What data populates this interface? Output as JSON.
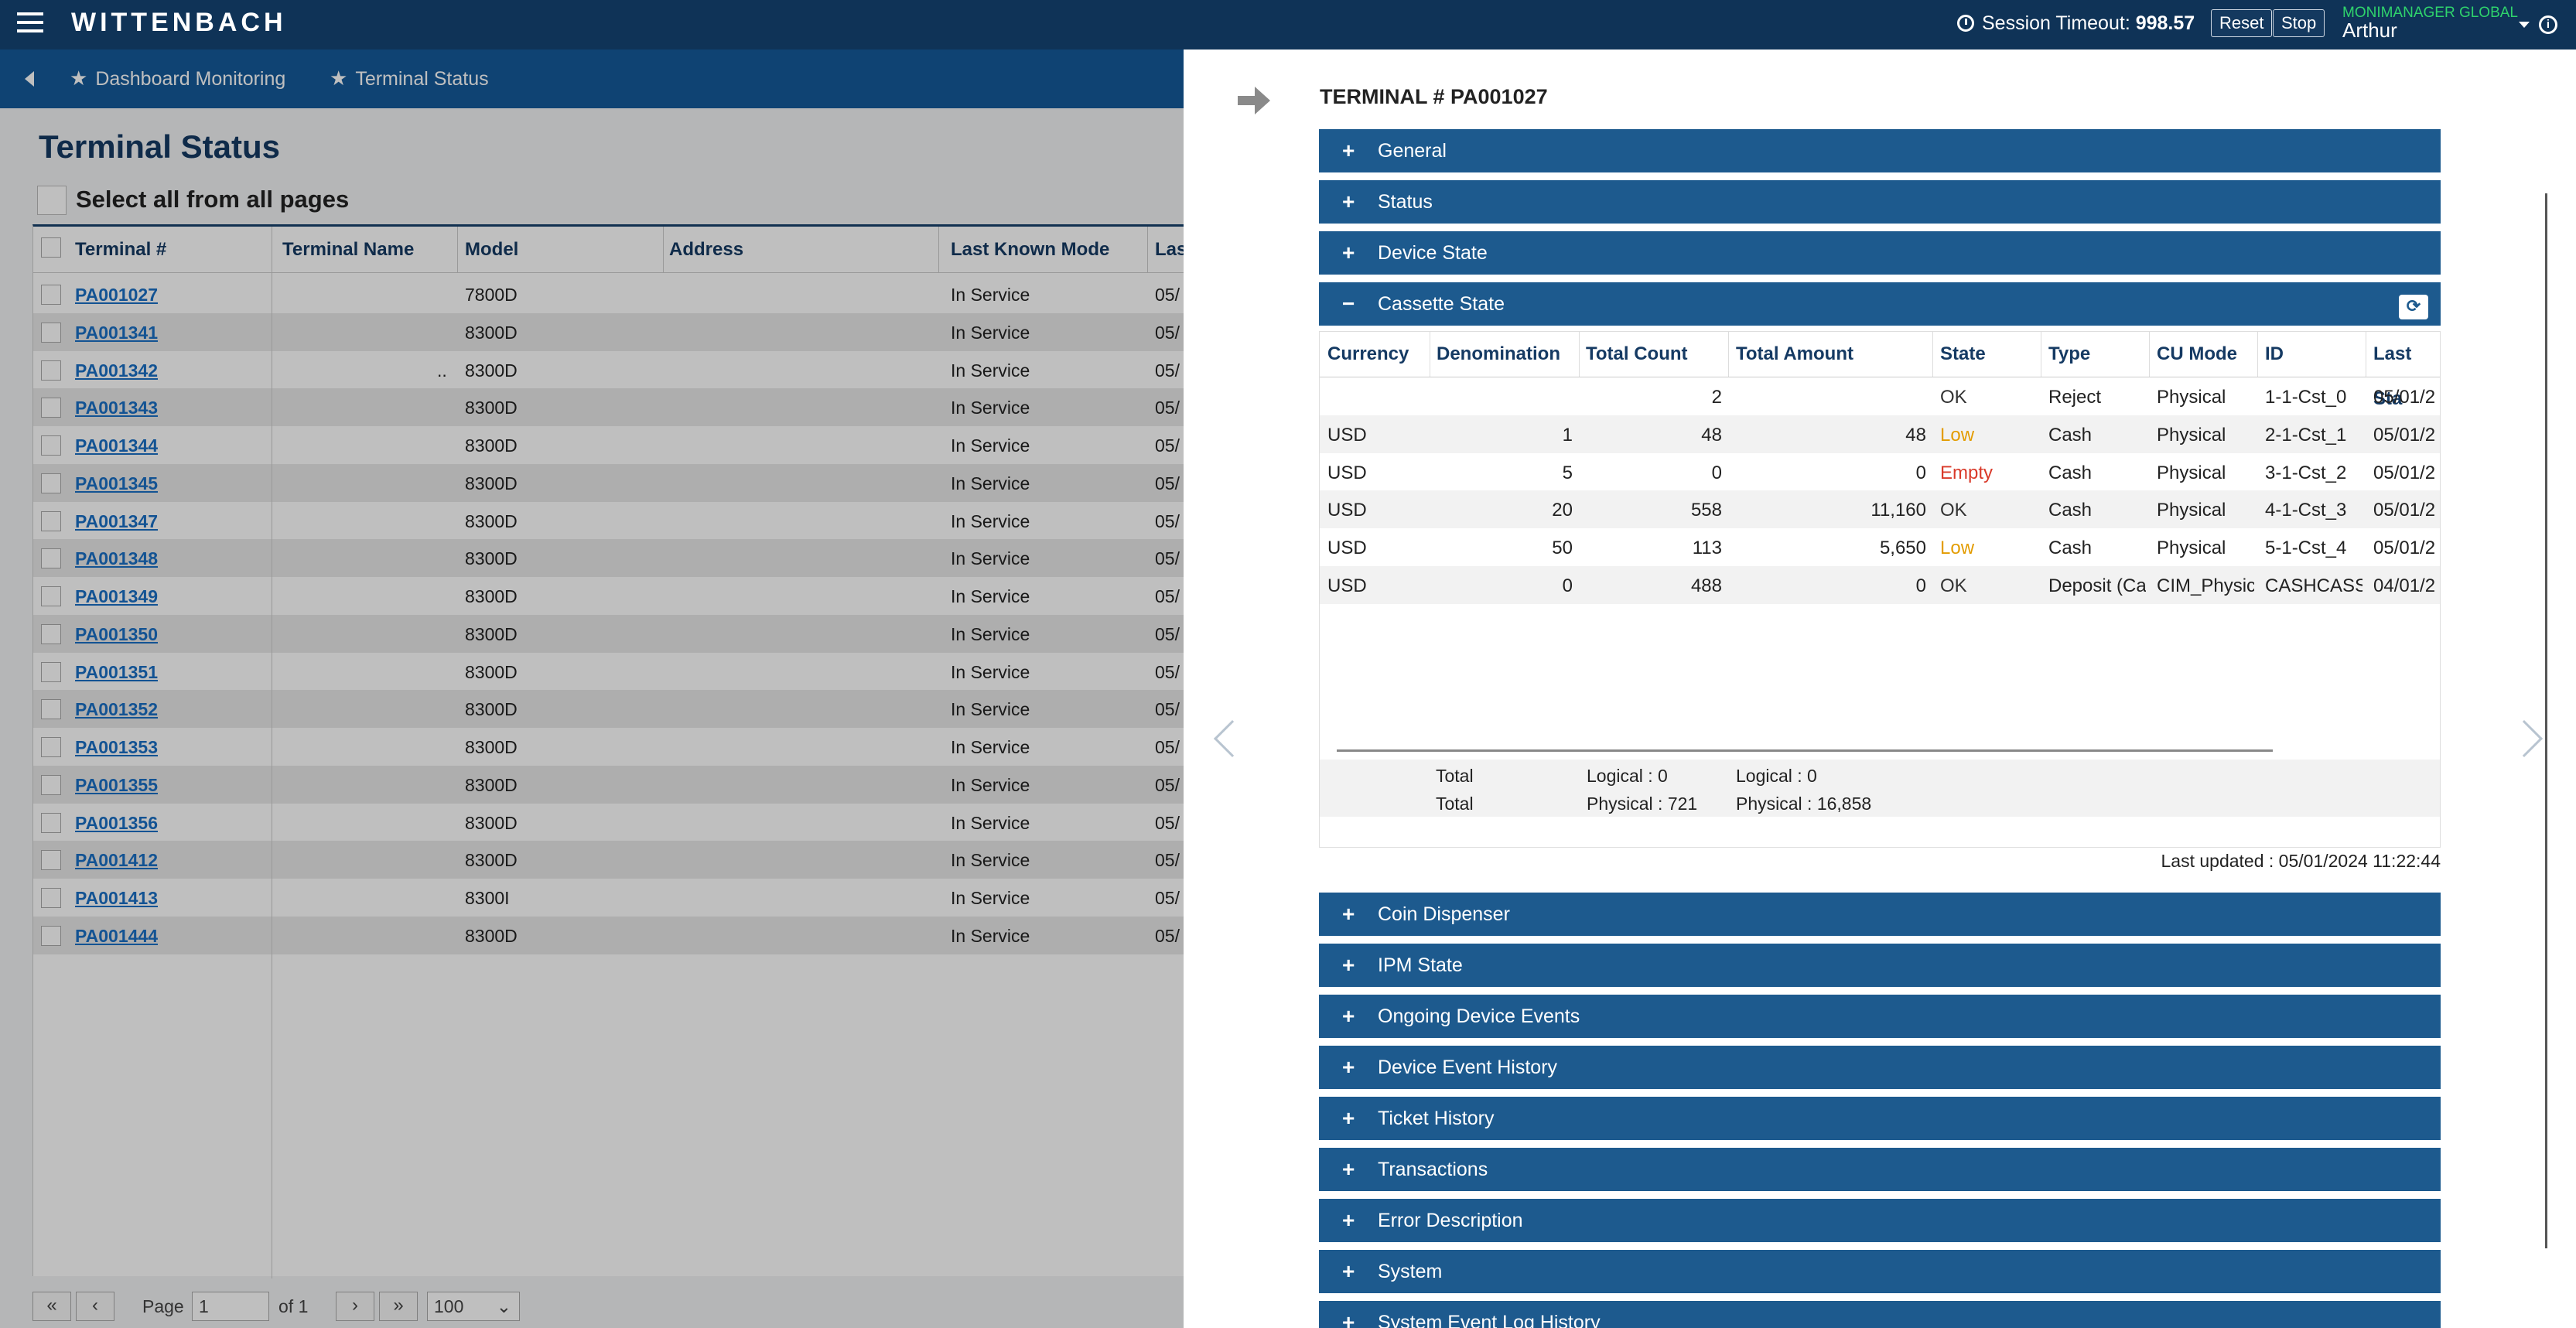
{
  "app": {
    "logo": "WITTENBACH",
    "session_label": "Session Timeout:",
    "session_value": "998.57",
    "reset_label": "Reset",
    "stop_label": "Stop",
    "org": "MONIMANAGER GLOBAL",
    "user": "Arthur",
    "info_glyph": "i"
  },
  "breadcrumbs": [
    "Dashboard Monitoring",
    "Terminal Status"
  ],
  "page": {
    "title": "Terminal Status",
    "select_all": "Select all from all pages"
  },
  "grid": {
    "columns": [
      "Terminal #",
      "Terminal Name",
      "Model",
      "Address",
      "Last Known Mode",
      "Las"
    ],
    "rows": [
      {
        "id": "PA001027",
        "name": "",
        "model": "7800D",
        "mode": "In Service",
        "last": "05/"
      },
      {
        "id": "PA001341",
        "name": "",
        "model": "8300D",
        "mode": "In Service",
        "last": "05/"
      },
      {
        "id": "PA001342",
        "name": "..",
        "model": "8300D",
        "mode": "In Service",
        "last": "05/"
      },
      {
        "id": "PA001343",
        "name": "",
        "model": "8300D",
        "mode": "In Service",
        "last": "05/"
      },
      {
        "id": "PA001344",
        "name": "",
        "model": "8300D",
        "mode": "In Service",
        "last": "05/"
      },
      {
        "id": "PA001345",
        "name": "",
        "model": "8300D",
        "mode": "In Service",
        "last": "05/"
      },
      {
        "id": "PA001347",
        "name": "",
        "model": "8300D",
        "mode": "In Service",
        "last": "05/"
      },
      {
        "id": "PA001348",
        "name": "",
        "model": "8300D",
        "mode": "In Service",
        "last": "05/"
      },
      {
        "id": "PA001349",
        "name": "",
        "model": "8300D",
        "mode": "In Service",
        "last": "05/"
      },
      {
        "id": "PA001350",
        "name": "",
        "model": "8300D",
        "mode": "In Service",
        "last": "05/"
      },
      {
        "id": "PA001351",
        "name": "",
        "model": "8300D",
        "mode": "In Service",
        "last": "05/"
      },
      {
        "id": "PA001352",
        "name": "",
        "model": "8300D",
        "mode": "In Service",
        "last": "05/"
      },
      {
        "id": "PA001353",
        "name": "",
        "model": "8300D",
        "mode": "In Service",
        "last": "05/"
      },
      {
        "id": "PA001355",
        "name": "",
        "model": "8300D",
        "mode": "In Service",
        "last": "05/"
      },
      {
        "id": "PA001356",
        "name": "",
        "model": "8300D",
        "mode": "In Service",
        "last": "05/"
      },
      {
        "id": "PA001412",
        "name": "",
        "model": "8300D",
        "mode": "In Service",
        "last": "05/"
      },
      {
        "id": "PA001413",
        "name": "",
        "model": "8300I",
        "mode": "In Service",
        "last": "05/"
      },
      {
        "id": "PA001444",
        "name": "",
        "model": "8300D",
        "mode": "In Service",
        "last": "05/"
      }
    ]
  },
  "pager": {
    "first": "«",
    "prev": "‹",
    "next": "›",
    "last": "»",
    "page_label": "Page",
    "page_value": "1",
    "of_label": "of 1",
    "page_size": "100"
  },
  "panel": {
    "title": "TERMINAL # PA001027",
    "sections_top": [
      {
        "label": "General",
        "expanded": false
      },
      {
        "label": "Status",
        "expanded": false
      },
      {
        "label": "Device State",
        "expanded": false
      },
      {
        "label": "Cassette State",
        "expanded": true
      }
    ],
    "cassette": {
      "columns": [
        "Currency",
        "Denomination",
        "Total Count",
        "Total Amount",
        "State",
        "Type",
        "CU Mode",
        "ID",
        "Last Sta"
      ],
      "rows": [
        {
          "currency": "",
          "denom": "",
          "count": "2",
          "amount": "",
          "state": "OK",
          "state_class": "ok",
          "type": "Reject",
          "cumode": "Physical",
          "id": "1-1-Cst_0",
          "last": "05/01/2"
        },
        {
          "currency": "USD",
          "denom": "1",
          "count": "48",
          "amount": "48",
          "state": "Low",
          "state_class": "low",
          "type": "Cash",
          "cumode": "Physical",
          "id": "2-1-Cst_1",
          "last": "05/01/2"
        },
        {
          "currency": "USD",
          "denom": "5",
          "count": "0",
          "amount": "0",
          "state": "Empty",
          "state_class": "empty",
          "type": "Cash",
          "cumode": "Physical",
          "id": "3-1-Cst_2",
          "last": "05/01/2"
        },
        {
          "currency": "USD",
          "denom": "20",
          "count": "558",
          "amount": "11,160",
          "state": "OK",
          "state_class": "ok",
          "type": "Cash",
          "cumode": "Physical",
          "id": "4-1-Cst_3",
          "last": "05/01/2"
        },
        {
          "currency": "USD",
          "denom": "50",
          "count": "113",
          "amount": "5,650",
          "state": "Low",
          "state_class": "low",
          "type": "Cash",
          "cumode": "Physical",
          "id": "5-1-Cst_4",
          "last": "05/01/2"
        },
        {
          "currency": "USD",
          "denom": "0",
          "count": "488",
          "amount": "0",
          "state": "OK",
          "state_class": "ok",
          "type": "Deposit (Cas",
          "cumode": "CIM_Physica",
          "id": "CASHCASSE",
          "last": "04/01/2"
        }
      ],
      "totals": [
        {
          "label": "Total",
          "count": "Logical : 0",
          "amount": "Logical : 0"
        },
        {
          "label": "Total",
          "count": "Physical : 721",
          "amount": "Physical : 16,858"
        }
      ],
      "last_updated": "Last updated : 05/01/2024 11:22:44",
      "state_colors": {
        "ok": "#333333",
        "low": "#e39c00",
        "empty": "#d93a2a"
      }
    },
    "sections_bottom": [
      "Coin Dispenser",
      "IPM State",
      "Ongoing Device Events",
      "Device Event History",
      "Ticket History",
      "Transactions",
      "Error Description",
      "System",
      "System Event Log History"
    ]
  },
  "colors": {
    "topbar": "#0f3357",
    "navbar": "#155a9a",
    "section": "#1d5a8e",
    "link": "#1a6fc4",
    "org": "#2fd36c"
  }
}
